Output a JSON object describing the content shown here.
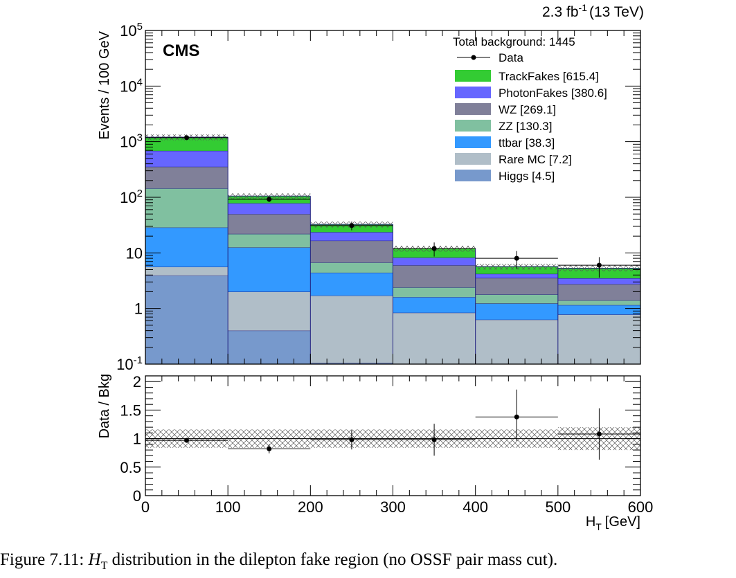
{
  "header": {
    "lumi_value": "2.3 fb",
    "lumi_exponent": "-1",
    "lumi_energy": "(13 TeV)",
    "experiment": "CMS"
  },
  "legend": {
    "total": "Total background: 1445",
    "data_label": "Data",
    "position": "top-right"
  },
  "caption": {
    "prefix": "Figure 7.11:",
    "var": "H",
    "var_sub": "T",
    "text": "distribution in the dilepton fake region (no OSSF pair mass cut)."
  },
  "colors": {
    "TrackFakes": "#33cc33",
    "PhotonFakes": "#6666ff",
    "WZ": "#808099",
    "ZZ": "#80c0a0",
    "ttbar": "#3399ff",
    "RareMC": "#b0bec8",
    "Higgs": "#7799cc",
    "stack_edge": "#202080"
  },
  "chart_data": [
    {
      "type": "bar",
      "subtype": "stacked-histogram",
      "xlabel": "H",
      "xlabel_sub": "T",
      "xlabel_unit": "[GeV]",
      "ylabel": "Events / 100 GeV",
      "bin_edges": [
        0,
        100,
        200,
        300,
        400,
        500,
        600
      ],
      "xlim": [
        0,
        600
      ],
      "ylim": [
        0.1,
        100000
      ],
      "log_y": true,
      "x_ticks": [
        "0",
        "100",
        "200",
        "300",
        "400",
        "500",
        "600"
      ],
      "y_ticks": [
        {
          "value": 0.1,
          "base": "10",
          "exp": "-1"
        },
        {
          "value": 1,
          "base": "1",
          "exp": ""
        },
        {
          "value": 10,
          "base": "10",
          "exp": ""
        },
        {
          "value": 100,
          "base": "10",
          "exp": "2"
        },
        {
          "value": 1000,
          "base": "10",
          "exp": "3"
        },
        {
          "value": 10000,
          "base": "10",
          "exp": "4"
        },
        {
          "value": 100000,
          "base": "10",
          "exp": "5"
        }
      ],
      "series": [
        {
          "name": "Higgs",
          "legend": "Higgs [4.5]",
          "color_key": "Higgs",
          "values": [
            3.9,
            0.4,
            0.105,
            0.0,
            0.0,
            0.0
          ]
        },
        {
          "name": "Rare MC",
          "legend": "Rare MC [7.2]",
          "color_key": "RareMC",
          "values": [
            1.7,
            1.6,
            1.6,
            0.84,
            0.63,
            0.78
          ]
        },
        {
          "name": "ttbar",
          "legend": "ttbar [38.3]",
          "color_key": "ttbar",
          "values": [
            23,
            10.5,
            2.7,
            0.76,
            0.6,
            0.37
          ]
        },
        {
          "name": "ZZ",
          "legend": "ZZ [130.3]",
          "color_key": "ZZ",
          "values": [
            116,
            9.5,
            2.3,
            0.8,
            0.56,
            0.25
          ]
        },
        {
          "name": "WZ",
          "legend": "WZ [269.1]",
          "color_key": "WZ",
          "values": [
            210,
            28,
            9.9,
            3.6,
            1.75,
            1.35
          ]
        },
        {
          "name": "PhotonFakes",
          "legend": "PhotonFakes [380.6]",
          "color_key": "PhotonFakes",
          "values": [
            330,
            28,
            7,
            2.2,
            0.65,
            0.75
          ]
        },
        {
          "name": "TrackFakes",
          "legend": "TrackFakes [615.4]",
          "color_key": "TrackFakes",
          "values": [
            520,
            27,
            9,
            3.8,
            1.5,
            1.8
          ]
        }
      ],
      "data_points": {
        "name": "Data",
        "x": [
          50,
          150,
          250,
          350,
          450,
          550
        ],
        "y": [
          1180,
          92,
          31,
          12,
          8,
          6
        ],
        "err_low": [
          35,
          10,
          5.5,
          3.4,
          2.8,
          2.4
        ],
        "err_high": [
          35,
          10,
          5.5,
          3.4,
          2.8,
          2.4
        ]
      },
      "bkg_uncertainty_rel": [
        0.12,
        0.12,
        0.12,
        0.12,
        0.12,
        0.12
      ]
    },
    {
      "type": "scatter",
      "subtype": "ratio-panel",
      "xlabel": "H",
      "xlabel_sub": "T",
      "xlabel_unit": "[GeV]",
      "ylabel": "Data / Bkg",
      "xlim": [
        0,
        600
      ],
      "ylim": [
        0,
        2.1
      ],
      "x_ticks": [
        "0",
        "100",
        "200",
        "300",
        "400",
        "500",
        "600"
      ],
      "y_ticks": [
        {
          "value": 0,
          "label": "0"
        },
        {
          "value": 0.5,
          "label": "0.5"
        },
        {
          "value": 1,
          "label": "1"
        },
        {
          "value": 1.5,
          "label": "1.5"
        },
        {
          "value": 2,
          "label": "2"
        }
      ],
      "x": [
        50,
        150,
        250,
        350,
        450,
        550
      ],
      "y": [
        0.97,
        0.82,
        0.98,
        0.98,
        1.38,
        1.08
      ],
      "err_low": [
        0.03,
        0.08,
        0.17,
        0.28,
        0.42,
        0.45
      ],
      "err_high": [
        0.03,
        0.08,
        0.17,
        0.28,
        0.48,
        0.45
      ],
      "band_low": [
        0.84,
        0.84,
        0.84,
        0.84,
        0.84,
        0.8
      ],
      "band_high": [
        1.16,
        1.16,
        1.16,
        1.16,
        1.16,
        1.2
      ]
    }
  ]
}
